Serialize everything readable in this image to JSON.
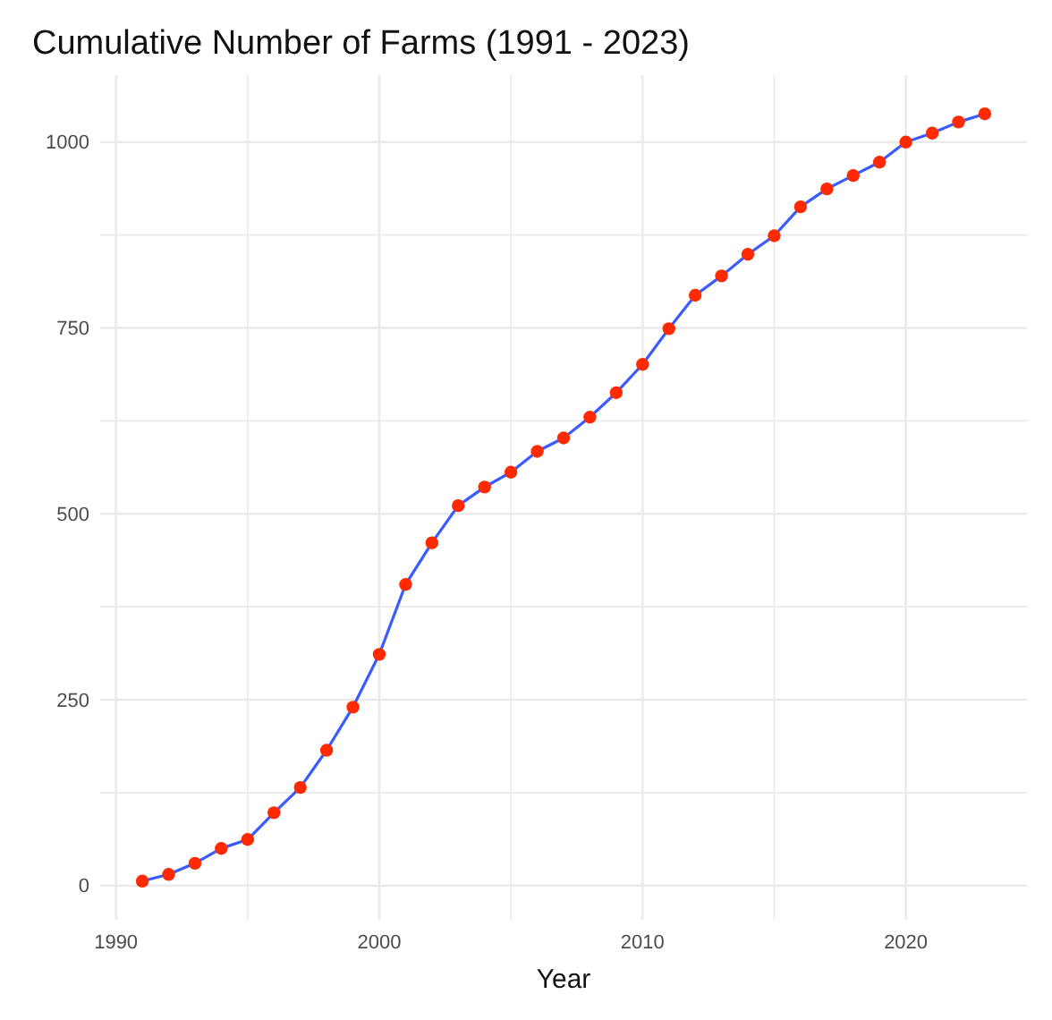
{
  "chart_data": {
    "type": "line",
    "title": "Cumulative Number of Farms (1991 - 2023)",
    "xlabel": "Year",
    "x": [
      1991,
      1992,
      1993,
      1994,
      1995,
      1996,
      1997,
      1998,
      1999,
      2000,
      2001,
      2002,
      2003,
      2004,
      2005,
      2006,
      2007,
      2008,
      2009,
      2010,
      2011,
      2012,
      2013,
      2014,
      2015,
      2016,
      2017,
      2018,
      2019,
      2020,
      2021,
      2022,
      2023
    ],
    "series": [
      {
        "color": "#3a5bff",
        "colors": [
          "#ff2a00",
          "#ff2a00",
          "#ff2a00",
          "#ff2a00",
          "#ff2a00",
          "#ff2a00",
          "#ff2a00",
          "#ff2a00",
          "#ff2a00",
          "#ff2a00",
          "#ff2a00",
          "#ff2a00",
          "#ff2a00",
          "#ff2a00",
          "#ff2a00",
          "#ff2a00",
          "#ff2a00",
          "#ff2a00",
          "#ff2a00",
          "#ff2a00",
          "#ff2a00",
          "#ff2a00",
          "#ff2a00",
          "#ff2a00",
          "#ff2a00",
          "#ff2a00",
          "#ff2a00",
          "#ff2a00",
          "#ff2a00",
          "#ff2a00",
          "#ff2a00",
          "#ff2a00",
          "#ff2a00"
        ],
        "values": [
          6,
          15,
          30,
          50,
          62,
          98,
          132,
          182,
          240,
          311,
          405,
          461,
          511,
          536,
          556,
          584,
          602,
          630,
          663,
          701,
          749,
          794,
          820,
          849,
          874,
          913,
          937,
          955,
          973,
          1000,
          1012,
          1027,
          1038
        ]
      }
    ],
    "xlim": [
      1989.4,
      2024.6
    ],
    "ylim": [
      -46,
      1090
    ],
    "xticks": [
      1990,
      {
        "value": 1995,
        "label": null
      },
      2000,
      {
        "value": 2005,
        "label": null
      },
      2010,
      {
        "value": 2015,
        "label": null
      },
      2020
    ],
    "yticks": [
      0,
      {
        "value": 125,
        "label": null
      },
      250,
      {
        "value": 375,
        "label": null
      },
      500,
      {
        "value": 625,
        "label": null
      },
      750,
      {
        "value": 875,
        "label": null
      },
      1000
    ],
    "grid": true,
    "marker": "circle",
    "line_style": "solid"
  }
}
